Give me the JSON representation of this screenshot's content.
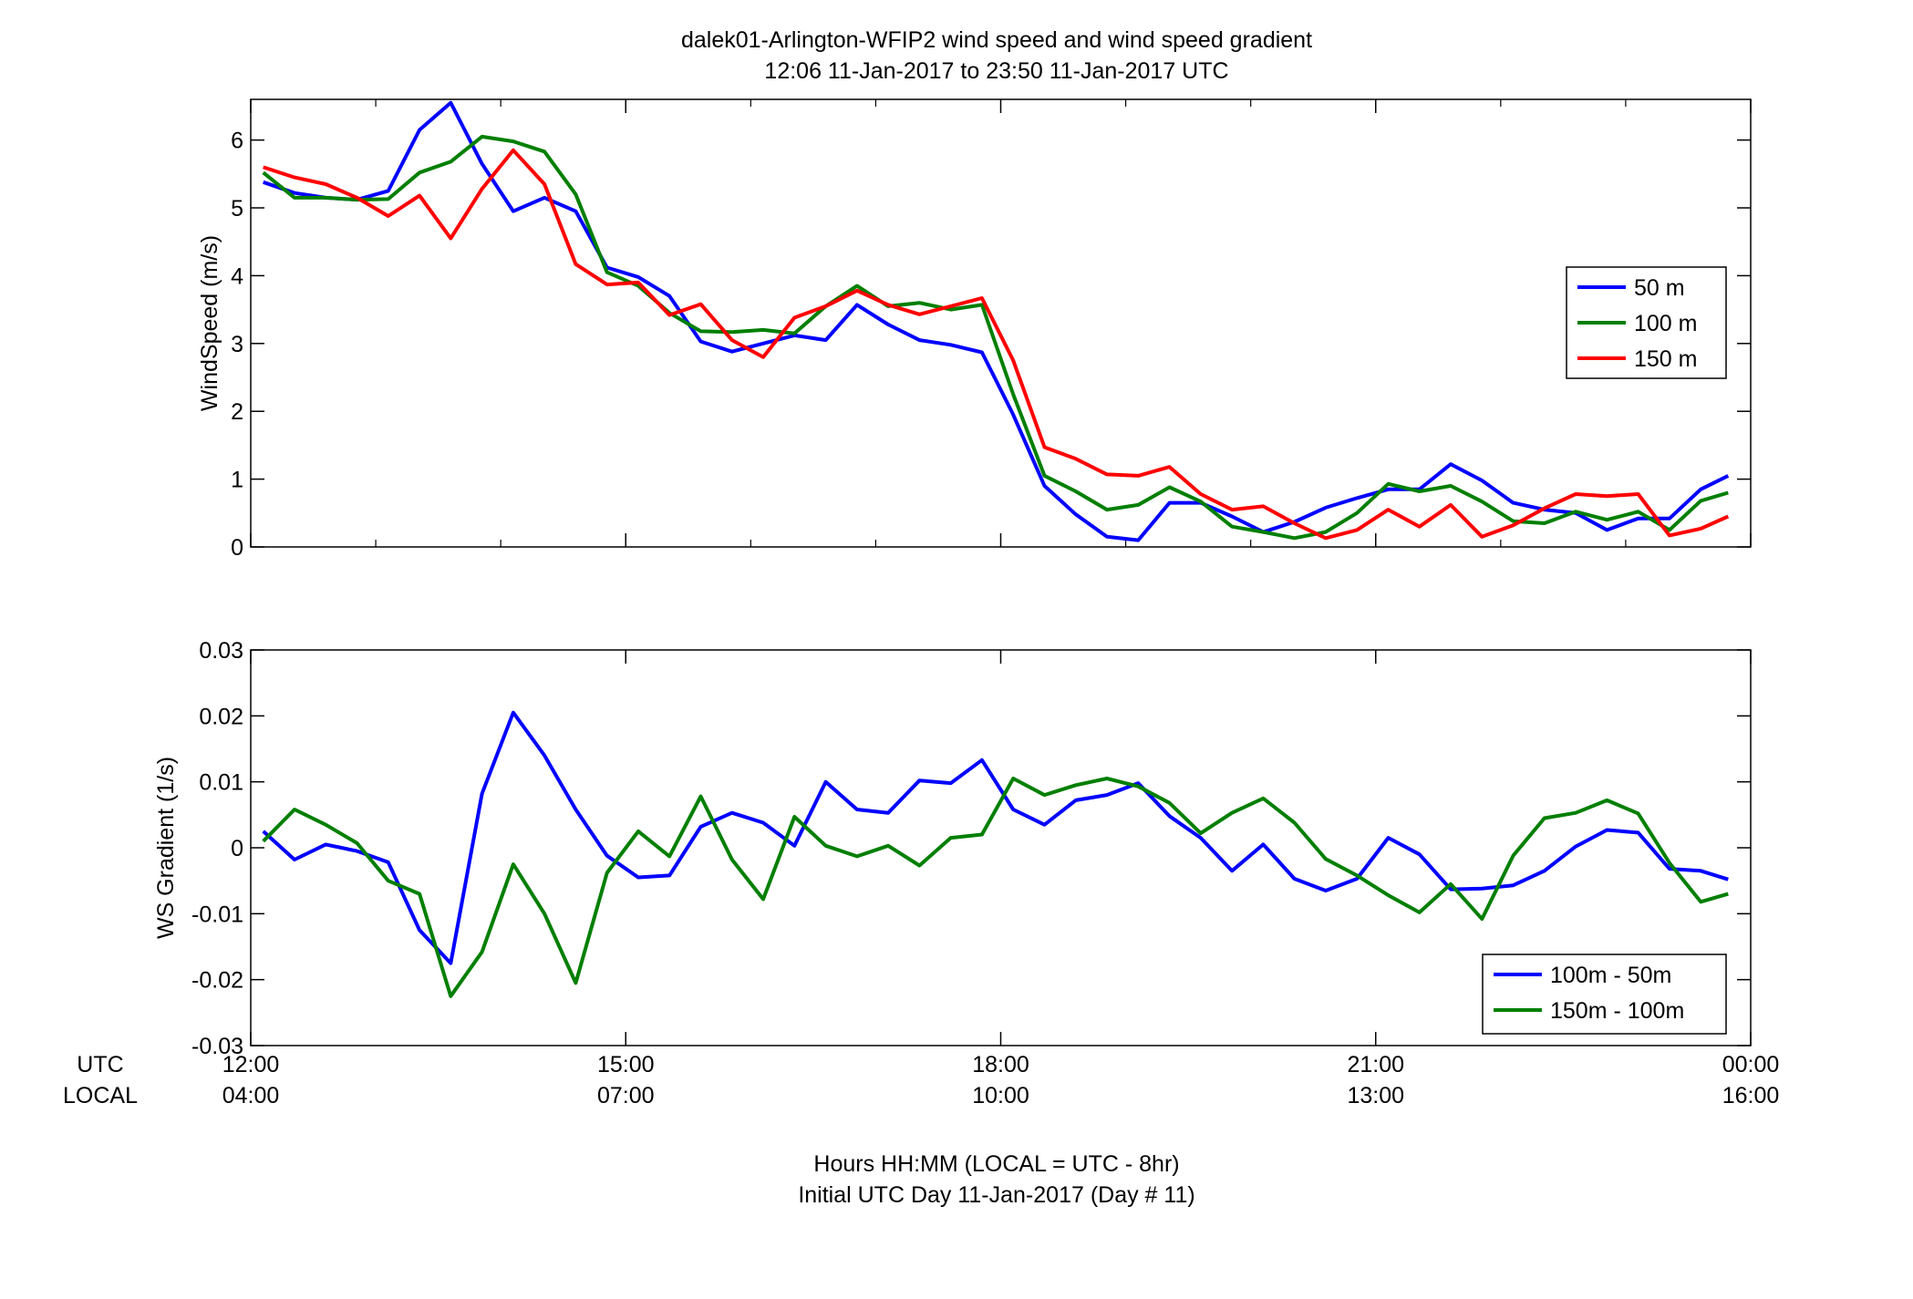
{
  "title": [
    "dalek01-Arlington-WFIP2  wind speed and wind speed gradient",
    "12:06 11-Jan-2017 to 23:50 11-Jan-2017  UTC"
  ],
  "xlabel": [
    "Hours HH:MM  (LOCAL = UTC - 8hr)",
    "Initial UTC Day 11-Jan-2017 (Day # 11)"
  ],
  "x_row_labels": {
    "utc": "UTC",
    "local": "LOCAL"
  },
  "x_ticks": {
    "values": [
      12,
      15,
      18,
      21,
      24
    ],
    "utc": [
      "12:00",
      "15:00",
      "18:00",
      "21:00",
      "00:00"
    ],
    "local": [
      "04:00",
      "07:00",
      "10:00",
      "13:00",
      "16:00"
    ]
  },
  "chart_data": [
    {
      "type": "line",
      "title": "dalek01-Arlington-WFIP2  wind speed and wind speed gradient",
      "xlabel": "",
      "ylabel": "WindSpeed (m/s)",
      "xlim": [
        12,
        24
      ],
      "ylim": [
        0,
        6.6
      ],
      "yticks": [
        0,
        1,
        2,
        3,
        4,
        5,
        6
      ],
      "grid": false,
      "legend": "right",
      "x": [
        12.1,
        12.35,
        12.6,
        12.85,
        13.1,
        13.35,
        13.6,
        13.85,
        14.1,
        14.35,
        14.6,
        14.85,
        15.1,
        15.35,
        15.6,
        15.85,
        16.1,
        16.35,
        16.6,
        16.85,
        17.1,
        17.35,
        17.6,
        17.85,
        18.1,
        18.35,
        18.6,
        18.85,
        19.1,
        19.35,
        19.6,
        19.85,
        20.1,
        20.35,
        20.6,
        20.85,
        21.1,
        21.35,
        21.6,
        21.85,
        22.1,
        22.35,
        22.6,
        22.85,
        23.1,
        23.35,
        23.6,
        23.82
      ],
      "series": [
        {
          "name": "50 m",
          "color": "#0000ff",
          "values": [
            5.38,
            5.22,
            5.15,
            5.12,
            5.25,
            6.15,
            6.55,
            5.65,
            4.95,
            5.15,
            4.95,
            4.12,
            3.98,
            3.7,
            3.03,
            2.88,
            3.0,
            3.12,
            3.05,
            3.57,
            3.28,
            3.05,
            2.98,
            2.87,
            1.95,
            0.9,
            0.48,
            0.15,
            0.1,
            0.65,
            0.65,
            0.45,
            0.22,
            0.37,
            0.58,
            0.72,
            0.85,
            0.85,
            1.22,
            0.98,
            0.65,
            0.55,
            0.5,
            0.25,
            0.42,
            0.42,
            0.85,
            1.05
          ]
        },
        {
          "name": "100 m",
          "color": "#007f00",
          "values": [
            5.52,
            5.15,
            5.15,
            5.12,
            5.13,
            5.52,
            5.68,
            6.05,
            5.98,
            5.83,
            5.2,
            4.05,
            3.85,
            3.45,
            3.18,
            3.17,
            3.2,
            3.15,
            3.55,
            3.85,
            3.55,
            3.6,
            3.5,
            3.57,
            2.25,
            1.05,
            0.82,
            0.55,
            0.62,
            0.88,
            0.67,
            0.3,
            0.22,
            0.13,
            0.22,
            0.5,
            0.93,
            0.82,
            0.9,
            0.67,
            0.38,
            0.35,
            0.52,
            0.4,
            0.52,
            0.25,
            0.68,
            0.8
          ]
        },
        {
          "name": "150 m",
          "color": "#ff0000",
          "values": [
            5.6,
            5.45,
            5.35,
            5.15,
            4.88,
            5.18,
            4.55,
            5.28,
            5.85,
            5.35,
            4.17,
            3.87,
            3.9,
            3.42,
            3.58,
            3.05,
            2.8,
            3.38,
            3.55,
            3.78,
            3.57,
            3.43,
            3.55,
            3.67,
            2.75,
            1.47,
            1.3,
            1.07,
            1.05,
            1.18,
            0.78,
            0.55,
            0.6,
            0.35,
            0.13,
            0.25,
            0.55,
            0.3,
            0.62,
            0.15,
            0.32,
            0.57,
            0.78,
            0.75,
            0.78,
            0.17,
            0.27,
            0.45
          ]
        }
      ]
    },
    {
      "type": "line",
      "title": "",
      "xlabel": "Hours HH:MM  (LOCAL = UTC - 8hr)",
      "ylabel": "WS Gradient (1/s)",
      "xlim": [
        12,
        24
      ],
      "ylim": [
        -0.03,
        0.03
      ],
      "yticks": [
        -0.03,
        -0.02,
        -0.01,
        0,
        0.01,
        0.02,
        0.03
      ],
      "ytick_labels": [
        "-0.03",
        "-0.02",
        "-0.01",
        "0",
        "0.01",
        "0.02",
        "0.03"
      ],
      "grid": false,
      "legend": "bottom-right",
      "x": [
        12.1,
        12.35,
        12.6,
        12.85,
        13.1,
        13.35,
        13.6,
        13.85,
        14.1,
        14.35,
        14.6,
        14.85,
        15.1,
        15.35,
        15.6,
        15.85,
        16.1,
        16.35,
        16.6,
        16.85,
        17.1,
        17.35,
        17.6,
        17.85,
        18.1,
        18.35,
        18.6,
        18.85,
        19.1,
        19.35,
        19.6,
        19.85,
        20.1,
        20.35,
        20.6,
        20.85,
        21.1,
        21.35,
        21.6,
        21.85,
        22.1,
        22.35,
        22.6,
        22.85,
        23.1,
        23.35,
        23.6,
        23.82
      ],
      "series": [
        {
          "name": "100m - 50m",
          "color": "#0000ff",
          "values": [
            0.0025,
            -0.0018,
            0.0005,
            -0.0005,
            -0.0022,
            -0.0125,
            -0.0175,
            0.0082,
            0.0205,
            0.014,
            0.0058,
            -0.0012,
            -0.0045,
            -0.0042,
            0.0032,
            0.0053,
            0.0038,
            0.0003,
            0.01,
            0.0058,
            0.0053,
            0.0102,
            0.0098,
            0.0133,
            0.0058,
            0.0035,
            0.0072,
            0.008,
            0.0098,
            0.0048,
            0.0015,
            -0.0035,
            0.0005,
            -0.0047,
            -0.0065,
            -0.0047,
            0.0015,
            -0.001,
            -0.0063,
            -0.0062,
            -0.0057,
            -0.0035,
            0.0002,
            0.0027,
            0.0023,
            -0.0032,
            -0.0035,
            -0.0048
          ]
        },
        {
          "name": "150m - 100m",
          "color": "#007f00",
          "values": [
            0.001,
            0.0058,
            0.0035,
            0.0007,
            -0.005,
            -0.007,
            -0.0225,
            -0.0158,
            -0.0025,
            -0.01,
            -0.0205,
            -0.0038,
            0.0025,
            -0.0013,
            0.0078,
            -0.0018,
            -0.0078,
            0.0047,
            0.0003,
            -0.0013,
            0.0003,
            -0.0027,
            0.0015,
            0.002,
            0.0105,
            0.008,
            0.0095,
            0.0105,
            0.0093,
            0.0068,
            0.0022,
            0.0053,
            0.0075,
            0.0038,
            -0.0017,
            -0.0042,
            -0.0072,
            -0.0098,
            -0.0055,
            -0.0108,
            -0.0012,
            0.0045,
            0.0053,
            0.0072,
            0.0052,
            -0.0023,
            -0.0082,
            -0.007
          ]
        }
      ]
    }
  ]
}
